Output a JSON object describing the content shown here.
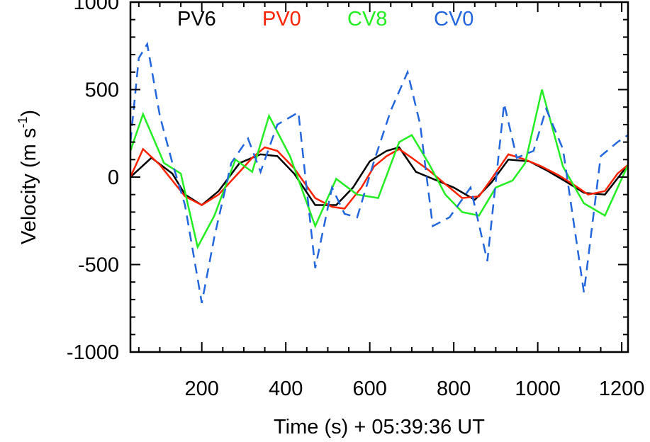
{
  "chart_data": {
    "type": "line",
    "title": "",
    "xlabel": "Time (s) + 05:39:36 UT",
    "ylabel_main": "Velocity (m s",
    "ylabel_exp": "-1",
    "ylabel_close": ")",
    "xlim": [
      30,
      1215
    ],
    "ylim": [
      -1000,
      1000
    ],
    "x_ticks": [
      200,
      400,
      600,
      800,
      1000,
      1200
    ],
    "x_tick_labels": [
      "200",
      "400",
      "600",
      "800",
      "1000",
      "1200"
    ],
    "y_ticks": [
      -1000,
      -500,
      0,
      500,
      1000
    ],
    "y_tick_labels": [
      "-1000",
      "-500",
      "0",
      "500",
      "1000"
    ],
    "legend_position": "top",
    "series": [
      {
        "name": "PV6",
        "color": "#000000",
        "dash": "solid",
        "x": [
          30,
          80,
          130,
          160,
          200,
          240,
          290,
          340,
          380,
          420,
          470,
          520,
          560,
          600,
          640,
          670,
          710,
          760,
          800,
          850,
          890,
          930,
          980,
          1020,
          1070,
          1110,
          1160,
          1215
        ],
        "y": [
          0,
          110,
          20,
          -100,
          -160,
          -80,
          80,
          130,
          120,
          20,
          -160,
          -160,
          -60,
          90,
          150,
          170,
          30,
          -20,
          -60,
          -130,
          -30,
          100,
          90,
          40,
          -30,
          -90,
          -100,
          70
        ]
      },
      {
        "name": "PV0",
        "color": "#ff2200",
        "dash": "solid",
        "x": [
          30,
          60,
          100,
          130,
          160,
          200,
          240,
          290,
          320,
          350,
          380,
          420,
          470,
          510,
          540,
          580,
          610,
          640,
          670,
          700,
          740,
          780,
          820,
          860,
          890,
          930,
          970,
          1010,
          1050,
          1090,
          1120,
          1160,
          1190,
          1215
        ],
        "y": [
          0,
          160,
          70,
          -20,
          -110,
          -160,
          -100,
          30,
          110,
          170,
          150,
          50,
          -120,
          -170,
          -180,
          -60,
          60,
          120,
          160,
          110,
          40,
          -40,
          -120,
          -110,
          -10,
          130,
          100,
          60,
          10,
          -50,
          -100,
          -80,
          20,
          70
        ]
      },
      {
        "name": "CV8",
        "color": "#22ee22",
        "dash": "solid",
        "x": [
          30,
          60,
          110,
          150,
          190,
          230,
          280,
          320,
          360,
          410,
          470,
          520,
          570,
          620,
          670,
          700,
          740,
          780,
          820,
          860,
          900,
          940,
          970,
          1010,
          1060,
          1110,
          1160,
          1215
        ],
        "y": [
          150,
          360,
          80,
          20,
          -400,
          -220,
          100,
          30,
          350,
          120,
          -280,
          -10,
          -100,
          -120,
          200,
          240,
          80,
          -100,
          -200,
          -220,
          -60,
          -20,
          80,
          500,
          60,
          -150,
          -220,
          70
        ]
      },
      {
        "name": "CV0",
        "color": "#2266dd",
        "dash": "dashed",
        "x": [
          30,
          50,
          70,
          100,
          130,
          160,
          200,
          230,
          270,
          310,
          340,
          380,
          430,
          470,
          510,
          540,
          570,
          610,
          650,
          690,
          720,
          750,
          790,
          840,
          880,
          920,
          950,
          990,
          1020,
          1060,
          1110,
          1150,
          1190,
          1215
        ],
        "y": [
          200,
          680,
          760,
          350,
          80,
          -160,
          -720,
          -340,
          80,
          220,
          30,
          300,
          370,
          -520,
          -60,
          -210,
          -230,
          90,
          380,
          600,
          300,
          -280,
          -230,
          -60,
          -480,
          420,
          110,
          150,
          390,
          160,
          -660,
          120,
          200,
          240
        ]
      }
    ]
  }
}
